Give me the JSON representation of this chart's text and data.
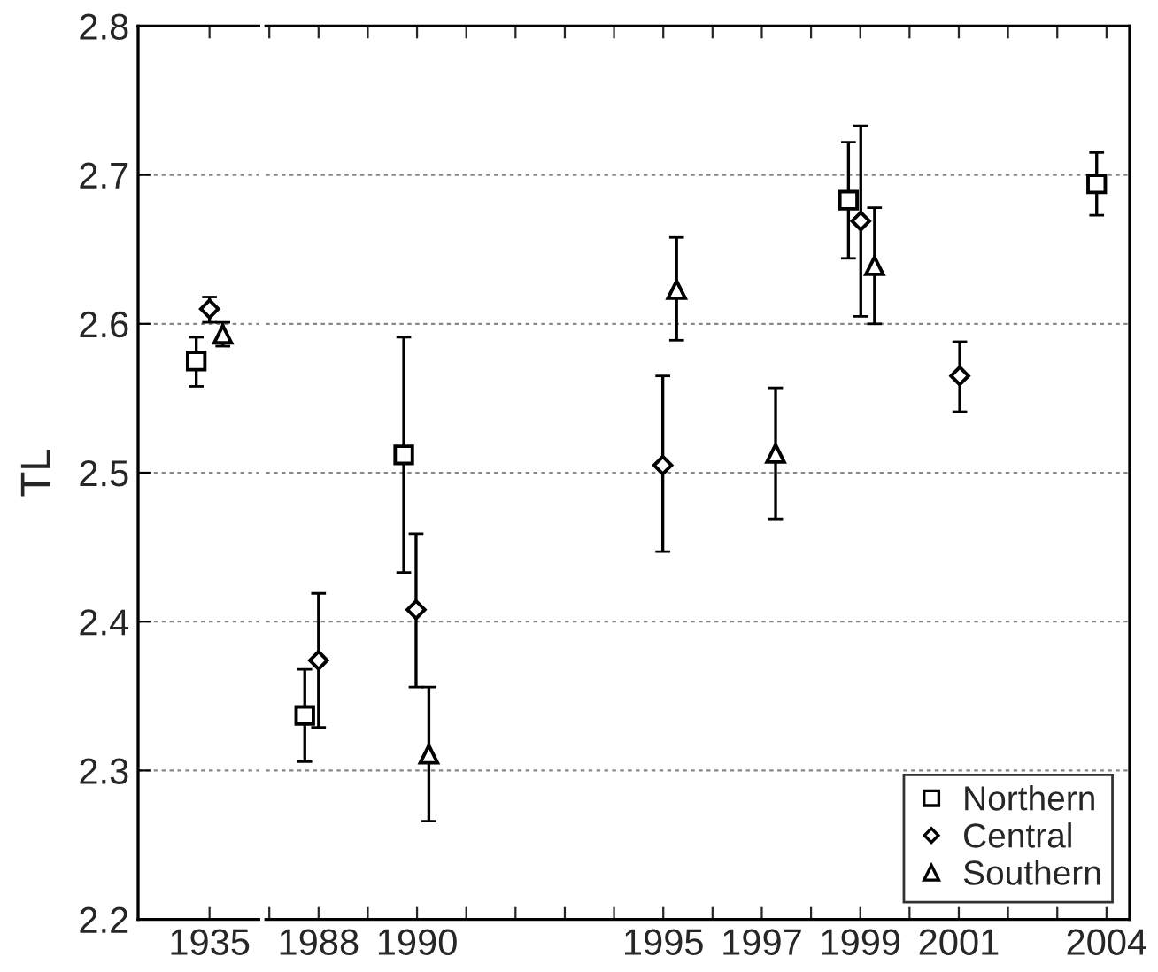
{
  "chart_data": [
    {
      "type": "scatter",
      "ylabel": "TL",
      "categories": [
        "1935"
      ],
      "ylim": [
        2.2,
        2.8
      ],
      "yticks": [
        2.2,
        2.3,
        2.4,
        2.5,
        2.6,
        2.7,
        2.8
      ],
      "grid": "y",
      "legend": false,
      "series": [
        {
          "color": "#000000",
          "marker": "square",
          "values": [
            2.575
          ],
          "errors": [
            [
              2.558,
              2.591
            ]
          ]
        },
        {
          "color": "#000000",
          "marker": "diamond",
          "values": [
            2.61
          ],
          "errors": [
            [
              2.601,
              2.618
            ]
          ]
        },
        {
          "color": "#000000",
          "marker": "triangle",
          "values": [
            2.593
          ],
          "errors": [
            [
              2.585,
              2.601
            ]
          ]
        }
      ]
    },
    {
      "type": "scatter",
      "xlim": [
        1986.93,
        2004.47
      ],
      "ylim": [
        2.2,
        2.8
      ],
      "tick_labels": "x",
      "xticks": [
        {
          "value": 1987,
          "label": null
        },
        1988,
        {
          "value": 1989,
          "label": null
        },
        1990,
        {
          "value": 1991,
          "label": null
        },
        {
          "value": 1992,
          "label": null
        },
        {
          "value": 1993,
          "label": null
        },
        {
          "value": 1994,
          "label": null
        },
        1995,
        {
          "value": 1996,
          "label": null
        },
        1997,
        {
          "value": 1998,
          "label": null
        },
        1999,
        {
          "value": 2000,
          "label": null
        },
        2001,
        {
          "value": 2002,
          "label": null
        },
        {
          "value": 2003,
          "label": null
        },
        2004
      ],
      "yticks": [
        2.2,
        2.3,
        2.4,
        2.5,
        2.6,
        2.7,
        2.8
      ],
      "grid": "y",
      "legend": "bottom right",
      "series": [
        {
          "name": "Northern",
          "color": "#000000",
          "marker": "square",
          "x": [
            1987.72,
            1989.73,
            1998.76,
            2003.8
          ],
          "values": [
            2.337,
            2.512,
            2.683,
            2.694
          ],
          "errors": [
            [
              2.306,
              2.368
            ],
            [
              2.433,
              2.591
            ],
            [
              2.644,
              2.722
            ],
            [
              2.673,
              2.715
            ]
          ]
        },
        {
          "name": "Central",
          "color": "#000000",
          "marker": "diamond",
          "x": [
            1988.0,
            1989.98,
            1994.99,
            1999.01,
            2001.02
          ],
          "values": [
            2.374,
            2.408,
            2.505,
            2.669,
            2.565
          ],
          "errors": [
            [
              2.329,
              2.419
            ],
            [
              2.356,
              2.459
            ],
            [
              2.447,
              2.565
            ],
            [
              2.605,
              2.733
            ],
            [
              2.541,
              2.588
            ]
          ]
        },
        {
          "name": "Southern",
          "color": "#000000",
          "marker": "triangle",
          "x": [
            1990.24,
            1995.27,
            1997.28,
            1999.29
          ],
          "values": [
            2.311,
            2.623,
            2.513,
            2.639
          ],
          "errors": [
            [
              2.266,
              2.356
            ],
            [
              2.589,
              2.658
            ],
            [
              2.469,
              2.557
            ],
            [
              2.6,
              2.678
            ]
          ]
        }
      ]
    }
  ]
}
